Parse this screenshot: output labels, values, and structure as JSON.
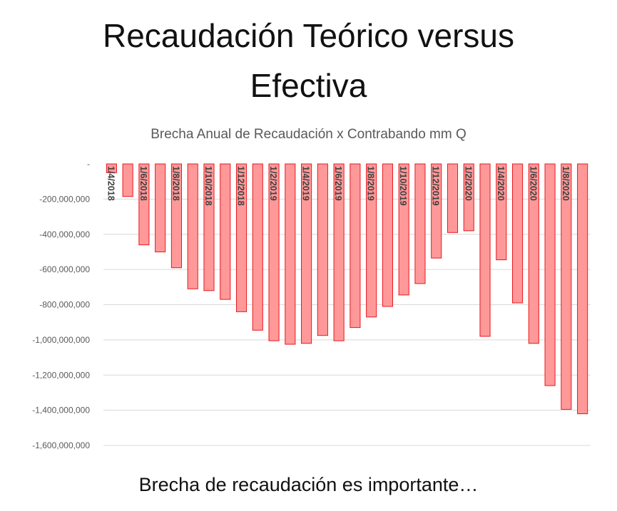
{
  "slide": {
    "title_line1": "Recaudación Teórico versus",
    "title_line2": "Efectiva",
    "caption": "Brecha de recaudación es importante…"
  },
  "chart_data": {
    "type": "bar",
    "title": "Brecha Anual de Recaudación x Contrabando mm Q",
    "xlabel": "",
    "ylabel": "",
    "ylim": [
      -1600000000,
      0
    ],
    "ytick_values": [
      0,
      -200000000,
      -400000000,
      -600000000,
      -800000000,
      -1000000000,
      -1200000000,
      -1400000000,
      -1600000000
    ],
    "ytick_labels": [
      "-",
      "-200,000,000",
      "-400,000,000",
      "-600,000,000",
      "-800,000,000",
      "-1,000,000,000",
      "-1,200,000,000",
      "-1,400,000,000",
      "-1,600,000,000"
    ],
    "grid": true,
    "bar_color": "#ff9999",
    "bar_edge_color": "#e8191f",
    "gridline_color": "#d9d9d9",
    "categories": [
      "1/4/2018",
      "1/5/2018",
      "1/6/2018",
      "1/7/2018",
      "1/8/2018",
      "1/9/2018",
      "1/10/2018",
      "1/11/2018",
      "1/12/2018",
      "1/1/2019",
      "1/2/2019",
      "1/3/2019",
      "1/4/2019",
      "1/5/2019",
      "1/6/2019",
      "1/7/2019",
      "1/8/2019",
      "1/9/2019",
      "1/10/2019",
      "1/11/2019",
      "1/12/2019",
      "1/1/2020",
      "1/2/2020",
      "1/3/2020",
      "1/4/2020",
      "1/5/2020",
      "1/6/2020",
      "1/7/2020",
      "1/8/2020",
      "1/9/2020"
    ],
    "values": [
      -50000000,
      -185000000,
      -460000000,
      -500000000,
      -590000000,
      -710000000,
      -720000000,
      -770000000,
      -840000000,
      -945000000,
      -1005000000,
      -1025000000,
      -1020000000,
      -975000000,
      -1005000000,
      -930000000,
      -870000000,
      -810000000,
      -745000000,
      -680000000,
      -535000000,
      -390000000,
      -380000000,
      -980000000,
      -545000000,
      -790000000,
      -1020000000,
      -1260000000,
      -1395000000,
      -1420000000
    ],
    "label_every": 2
  }
}
